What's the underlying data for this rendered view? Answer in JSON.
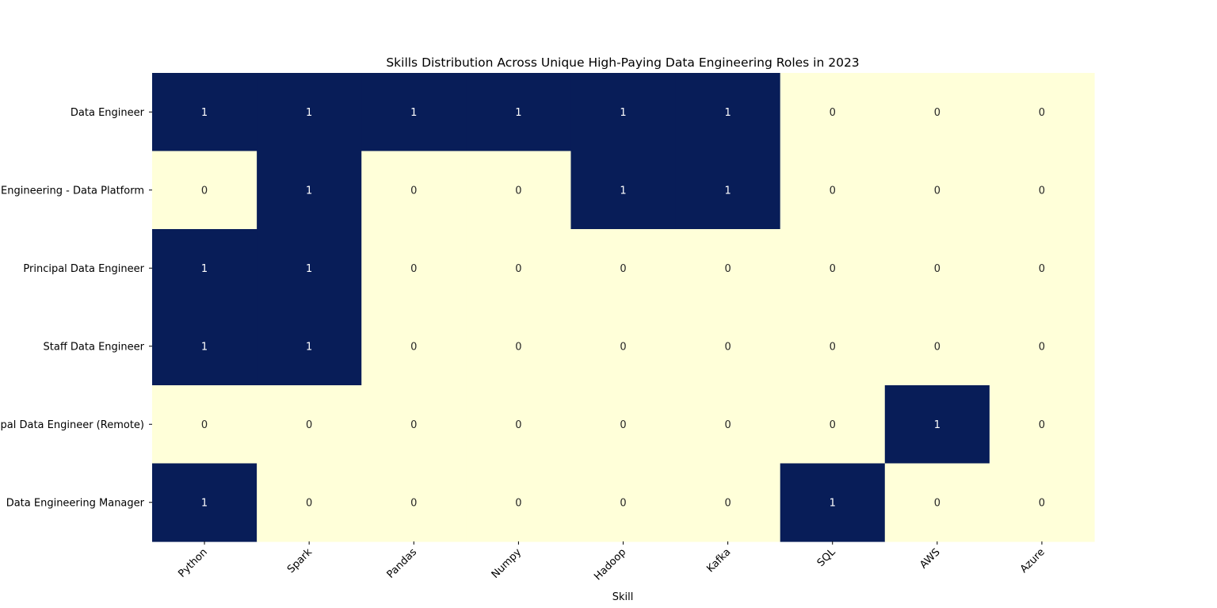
{
  "chart_data": {
    "type": "heatmap",
    "title": "Skills Distribution Across Unique High-Paying Data Engineering Roles in 2023",
    "xlabel": "Skill",
    "ylabel": "",
    "x_categories": [
      "Python",
      "Spark",
      "Pandas",
      "Numpy",
      "Hadoop",
      "Kafka",
      "SQL",
      "AWS",
      "Azure"
    ],
    "y_categories": [
      "Data Engineer",
      "Director of Engineering - Data Platform",
      "Principal Data Engineer",
      "Staff Data Engineer",
      "Principal Data Engineer (Remote)",
      "Data Engineering Manager"
    ],
    "values": [
      [
        1,
        1,
        1,
        1,
        1,
        1,
        0,
        0,
        0
      ],
      [
        0,
        1,
        0,
        0,
        1,
        1,
        0,
        0,
        0
      ],
      [
        1,
        1,
        0,
        0,
        0,
        0,
        0,
        0,
        0
      ],
      [
        1,
        1,
        0,
        0,
        0,
        0,
        0,
        0,
        0
      ],
      [
        0,
        0,
        0,
        0,
        0,
        0,
        0,
        1,
        0
      ],
      [
        1,
        0,
        0,
        0,
        0,
        0,
        1,
        0,
        0
      ]
    ],
    "colormap": "YlGnBu",
    "color_low": "#ffffd9",
    "color_high": "#081d58",
    "text_on_low": "#262626",
    "text_on_high": "#ffffff",
    "annotations": true,
    "colorbar": false,
    "grid": false
  }
}
